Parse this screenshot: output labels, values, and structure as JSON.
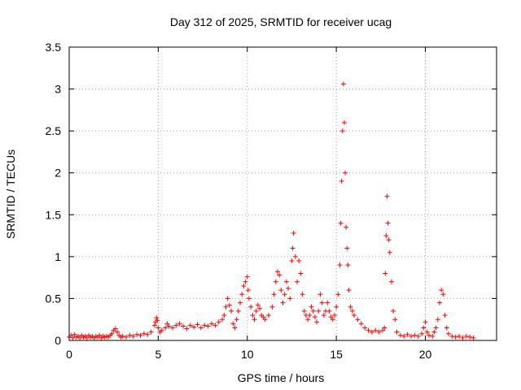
{
  "chart_data": {
    "type": "scatter",
    "title": "Day 312 of 2025, SRMTID for receiver ucag",
    "xlabel": "GPS time / hours",
    "ylabel": "SRMTID / TECUs",
    "xlim": [
      0,
      24
    ],
    "ylim": [
      0,
      3.5
    ],
    "xticks": [
      0,
      5,
      10,
      15,
      20
    ],
    "yticks": [
      0,
      0.5,
      1,
      1.5,
      2,
      2.5,
      3,
      3.5
    ],
    "xtick_labels": [
      "0",
      "5",
      "10",
      "15",
      "20"
    ],
    "ytick_labels": [
      "0",
      "0.5",
      "1",
      "1.5",
      "2",
      "2.5",
      "3",
      "3.5"
    ],
    "grid": true,
    "marker": "+",
    "series": [
      {
        "name": "SRMTID",
        "color": "#ff0000",
        "points": [
          [
            0.0,
            0.04
          ],
          [
            0.1,
            0.06
          ],
          [
            0.2,
            0.03
          ],
          [
            0.3,
            0.07
          ],
          [
            0.4,
            0.04
          ],
          [
            0.5,
            0.05
          ],
          [
            0.6,
            0.03
          ],
          [
            0.7,
            0.06
          ],
          [
            0.8,
            0.04
          ],
          [
            0.9,
            0.05
          ],
          [
            1.0,
            0.03
          ],
          [
            1.1,
            0.06
          ],
          [
            1.2,
            0.04
          ],
          [
            1.3,
            0.05
          ],
          [
            1.4,
            0.03
          ],
          [
            1.5,
            0.05
          ],
          [
            1.6,
            0.04
          ],
          [
            1.7,
            0.06
          ],
          [
            1.8,
            0.03
          ],
          [
            1.9,
            0.05
          ],
          [
            2.0,
            0.04
          ],
          [
            2.1,
            0.05
          ],
          [
            2.2,
            0.04
          ],
          [
            2.3,
            0.06
          ],
          [
            2.4,
            0.08
          ],
          [
            2.5,
            0.12
          ],
          [
            2.6,
            0.14
          ],
          [
            2.7,
            0.1
          ],
          [
            2.8,
            0.06
          ],
          [
            2.9,
            0.04
          ],
          [
            3.0,
            0.05
          ],
          [
            3.2,
            0.04
          ],
          [
            3.4,
            0.06
          ],
          [
            3.6,
            0.05
          ],
          [
            3.8,
            0.07
          ],
          [
            4.0,
            0.06
          ],
          [
            4.2,
            0.08
          ],
          [
            4.4,
            0.07
          ],
          [
            4.6,
            0.1
          ],
          [
            4.8,
            0.18
          ],
          [
            4.85,
            0.22
          ],
          [
            4.9,
            0.27
          ],
          [
            4.95,
            0.24
          ],
          [
            5.0,
            0.15
          ],
          [
            5.1,
            0.1
          ],
          [
            5.2,
            0.12
          ],
          [
            5.4,
            0.15
          ],
          [
            5.5,
            0.2
          ],
          [
            5.6,
            0.17
          ],
          [
            5.8,
            0.15
          ],
          [
            6.0,
            0.18
          ],
          [
            6.2,
            0.2
          ],
          [
            6.4,
            0.17
          ],
          [
            6.6,
            0.14
          ],
          [
            6.8,
            0.18
          ],
          [
            7.0,
            0.16
          ],
          [
            7.2,
            0.19
          ],
          [
            7.4,
            0.15
          ],
          [
            7.6,
            0.18
          ],
          [
            7.8,
            0.17
          ],
          [
            8.0,
            0.2
          ],
          [
            8.2,
            0.18
          ],
          [
            8.4,
            0.22
          ],
          [
            8.6,
            0.25
          ],
          [
            8.7,
            0.3
          ],
          [
            8.8,
            0.4
          ],
          [
            8.9,
            0.5
          ],
          [
            9.0,
            0.42
          ],
          [
            9.1,
            0.35
          ],
          [
            9.2,
            0.2
          ],
          [
            9.3,
            0.15
          ],
          [
            9.4,
            0.25
          ],
          [
            9.5,
            0.35
          ],
          [
            9.6,
            0.45
          ],
          [
            9.7,
            0.55
          ],
          [
            9.8,
            0.65
          ],
          [
            9.9,
            0.7
          ],
          [
            10.0,
            0.76
          ],
          [
            10.05,
            0.6
          ],
          [
            10.1,
            0.5
          ],
          [
            10.2,
            0.4
          ],
          [
            10.3,
            0.3
          ],
          [
            10.4,
            0.25
          ],
          [
            10.5,
            0.35
          ],
          [
            10.6,
            0.42
          ],
          [
            10.7,
            0.38
          ],
          [
            10.8,
            0.3
          ],
          [
            10.9,
            0.28
          ],
          [
            11.0,
            0.25
          ],
          [
            11.2,
            0.3
          ],
          [
            11.4,
            0.4
          ],
          [
            11.5,
            0.55
          ],
          [
            11.6,
            0.7
          ],
          [
            11.7,
            0.82
          ],
          [
            11.8,
            0.78
          ],
          [
            11.9,
            0.6
          ],
          [
            12.0,
            0.45
          ],
          [
            12.1,
            0.55
          ],
          [
            12.2,
            0.7
          ],
          [
            12.3,
            0.62
          ],
          [
            12.4,
            0.5
          ],
          [
            12.5,
            0.95
          ],
          [
            12.55,
            1.1
          ],
          [
            12.6,
            1.28
          ],
          [
            12.7,
            1.0
          ],
          [
            12.8,
            0.7
          ],
          [
            12.9,
            0.95
          ],
          [
            13.0,
            0.8
          ],
          [
            13.1,
            0.55
          ],
          [
            13.2,
            0.35
          ],
          [
            13.3,
            0.3
          ],
          [
            13.4,
            0.25
          ],
          [
            13.5,
            0.3
          ],
          [
            13.6,
            0.4
          ],
          [
            13.7,
            0.35
          ],
          [
            13.8,
            0.28
          ],
          [
            13.9,
            0.22
          ],
          [
            14.0,
            0.35
          ],
          [
            14.1,
            0.55
          ],
          [
            14.2,
            0.45
          ],
          [
            14.3,
            0.3
          ],
          [
            14.4,
            0.35
          ],
          [
            14.5,
            0.45
          ],
          [
            14.6,
            0.35
          ],
          [
            14.7,
            0.28
          ],
          [
            14.8,
            0.25
          ],
          [
            14.9,
            0.3
          ],
          [
            15.0,
            0.4
          ],
          [
            15.1,
            0.55
          ],
          [
            15.2,
            0.9
          ],
          [
            15.25,
            1.4
          ],
          [
            15.3,
            1.9
          ],
          [
            15.35,
            2.5
          ],
          [
            15.4,
            3.06
          ],
          [
            15.45,
            2.6
          ],
          [
            15.5,
            2.0
          ],
          [
            15.55,
            1.35
          ],
          [
            15.6,
            1.1
          ],
          [
            15.65,
            0.9
          ],
          [
            15.7,
            0.6
          ],
          [
            15.8,
            0.4
          ],
          [
            15.9,
            0.35
          ],
          [
            16.0,
            0.3
          ],
          [
            16.2,
            0.25
          ],
          [
            16.4,
            0.2
          ],
          [
            16.6,
            0.15
          ],
          [
            16.8,
            0.12
          ],
          [
            17.0,
            0.1
          ],
          [
            17.2,
            0.12
          ],
          [
            17.4,
            0.1
          ],
          [
            17.6,
            0.12
          ],
          [
            17.7,
            0.15
          ],
          [
            17.75,
            0.8
          ],
          [
            17.8,
            1.25
          ],
          [
            17.85,
            1.72
          ],
          [
            17.9,
            1.4
          ],
          [
            17.95,
            1.2
          ],
          [
            18.0,
            1.05
          ],
          [
            18.1,
            0.7
          ],
          [
            18.2,
            0.35
          ],
          [
            18.3,
            0.25
          ],
          [
            18.4,
            0.1
          ],
          [
            18.6,
            0.06
          ],
          [
            18.8,
            0.05
          ],
          [
            19.0,
            0.07
          ],
          [
            19.2,
            0.05
          ],
          [
            19.4,
            0.06
          ],
          [
            19.6,
            0.05
          ],
          [
            19.8,
            0.08
          ],
          [
            19.9,
            0.15
          ],
          [
            20.0,
            0.22
          ],
          [
            20.1,
            0.1
          ],
          [
            20.2,
            0.06
          ],
          [
            20.4,
            0.05
          ],
          [
            20.5,
            0.1
          ],
          [
            20.6,
            0.15
          ],
          [
            20.7,
            0.25
          ],
          [
            20.8,
            0.45
          ],
          [
            20.9,
            0.6
          ],
          [
            21.0,
            0.55
          ],
          [
            21.1,
            0.3
          ],
          [
            21.2,
            0.15
          ],
          [
            21.3,
            0.08
          ],
          [
            21.5,
            0.05
          ],
          [
            21.7,
            0.04
          ],
          [
            21.9,
            0.05
          ],
          [
            22.1,
            0.03
          ],
          [
            22.3,
            0.05
          ],
          [
            22.5,
            0.04
          ],
          [
            22.7,
            0.03
          ]
        ]
      }
    ]
  }
}
